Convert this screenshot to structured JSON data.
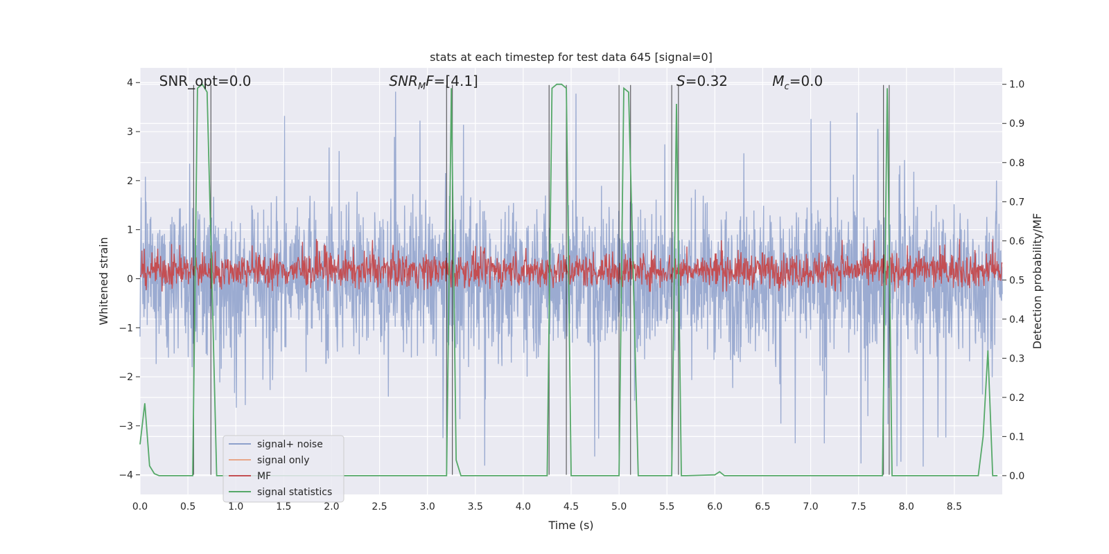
{
  "chart_data": {
    "type": "line",
    "title": "stats at each timestep for test data 645 [signal=0]",
    "xlabel": "Time (s)",
    "ylabel_left": "Whitened strain",
    "ylabel_right": "Detection probability/MF",
    "xlim": [
      0.0,
      9.0
    ],
    "ylim_left": [
      -4.4,
      4.3
    ],
    "ylim_right": [
      -0.048,
      1.042
    ],
    "x_ticks": [
      0.0,
      0.5,
      1.0,
      1.5,
      2.0,
      2.5,
      3.0,
      3.5,
      4.0,
      4.5,
      5.0,
      5.5,
      6.0,
      6.5,
      7.0,
      7.5,
      8.0,
      8.5
    ],
    "x_tick_labels": [
      "0.0",
      "0.5",
      "1.0",
      "1.5",
      "2.0",
      "2.5",
      "3.0",
      "3.5",
      "4.0",
      "4.5",
      "5.0",
      "5.5",
      "6.0",
      "6.5",
      "7.0",
      "7.5",
      "8.0",
      "8.5"
    ],
    "y_ticks_left": [
      4,
      3,
      2,
      1,
      0,
      -1,
      -2,
      -3,
      -4
    ],
    "y_tick_labels_left": [
      "4",
      "3",
      "2",
      "1",
      "0",
      "−1",
      "−2",
      "−3",
      "−4"
    ],
    "y_ticks_right": [
      1.0,
      0.9,
      0.8,
      0.7,
      0.6,
      0.5,
      0.4,
      0.3,
      0.2,
      0.1,
      0.0
    ],
    "y_tick_labels_right": [
      "1.0",
      "0.9",
      "0.8",
      "0.7",
      "0.6",
      "0.5",
      "0.4",
      "0.3",
      "0.2",
      "0.1",
      "0.0"
    ],
    "annotations": [
      {
        "id": "snr-opt",
        "text": "SNR_opt=0.0",
        "x": 0.2
      },
      {
        "id": "snr-mf",
        "text": "SNR_MF=[4.1]",
        "x": 2.6
      },
      {
        "id": "s-value",
        "text": "S=0.32",
        "x": 5.6
      },
      {
        "id": "mc-value",
        "text": "M_c=0.0",
        "x": 6.6
      }
    ],
    "legend": {
      "position": "lower-left",
      "entries": [
        "signal+ noise",
        "signal only",
        "MF",
        "signal statistics"
      ]
    },
    "series": [
      {
        "name": "signal+ noise",
        "axis": "left",
        "color": "#8da0cb",
        "kind": "noise",
        "envelope": 1.5,
        "spike_max": 3.9,
        "spike_min": -4.1
      },
      {
        "name": "signal only",
        "axis": "left",
        "color": "#e8a688",
        "values": []
      },
      {
        "name": "MF",
        "axis": "right",
        "color": "#c44e52",
        "kind": "noise",
        "center": 0.525,
        "envelope": 0.05,
        "spike_max": 0.61
      },
      {
        "name": "signal statistics",
        "axis": "right",
        "color": "#55a868",
        "x": [
          0.0,
          0.05,
          0.1,
          0.15,
          0.2,
          0.25,
          0.3,
          0.55,
          0.6,
          0.65,
          0.7,
          0.75,
          0.8,
          3.2,
          3.25,
          3.3,
          3.35,
          3.4,
          4.25,
          4.3,
          4.35,
          4.4,
          4.45,
          4.5,
          5.0,
          5.05,
          5.1,
          5.15,
          5.2,
          5.55,
          5.6,
          5.65,
          5.7,
          6.0,
          6.05,
          6.1,
          7.75,
          7.8,
          7.85,
          8.75,
          8.8,
          8.85,
          8.9,
          8.95
        ],
        "values": [
          0.08,
          0.185,
          0.025,
          0.005,
          0.0,
          0.0,
          0.0,
          0.0,
          0.99,
          1.0,
          0.98,
          0.5,
          0.0,
          0.0,
          0.99,
          0.04,
          0.0,
          0.0,
          0.0,
          0.99,
          1.0,
          1.0,
          0.99,
          0.0,
          0.0,
          0.99,
          0.98,
          0.5,
          0.0,
          0.0,
          0.95,
          0.0,
          0.0,
          0.002,
          0.01,
          0.0,
          0.0,
          0.99,
          0.0,
          0.0,
          0.1,
          0.32,
          0.0,
          0.0
        ]
      },
      {
        "name": "detection markers",
        "axis": "left",
        "color": "#000000",
        "x": [
          0.56,
          0.74,
          3.2,
          3.26,
          4.27,
          4.45,
          5.0,
          5.12,
          5.55,
          5.62,
          7.76,
          7.82
        ],
        "ymin": -4.0,
        "ymax": 3.95
      }
    ]
  }
}
